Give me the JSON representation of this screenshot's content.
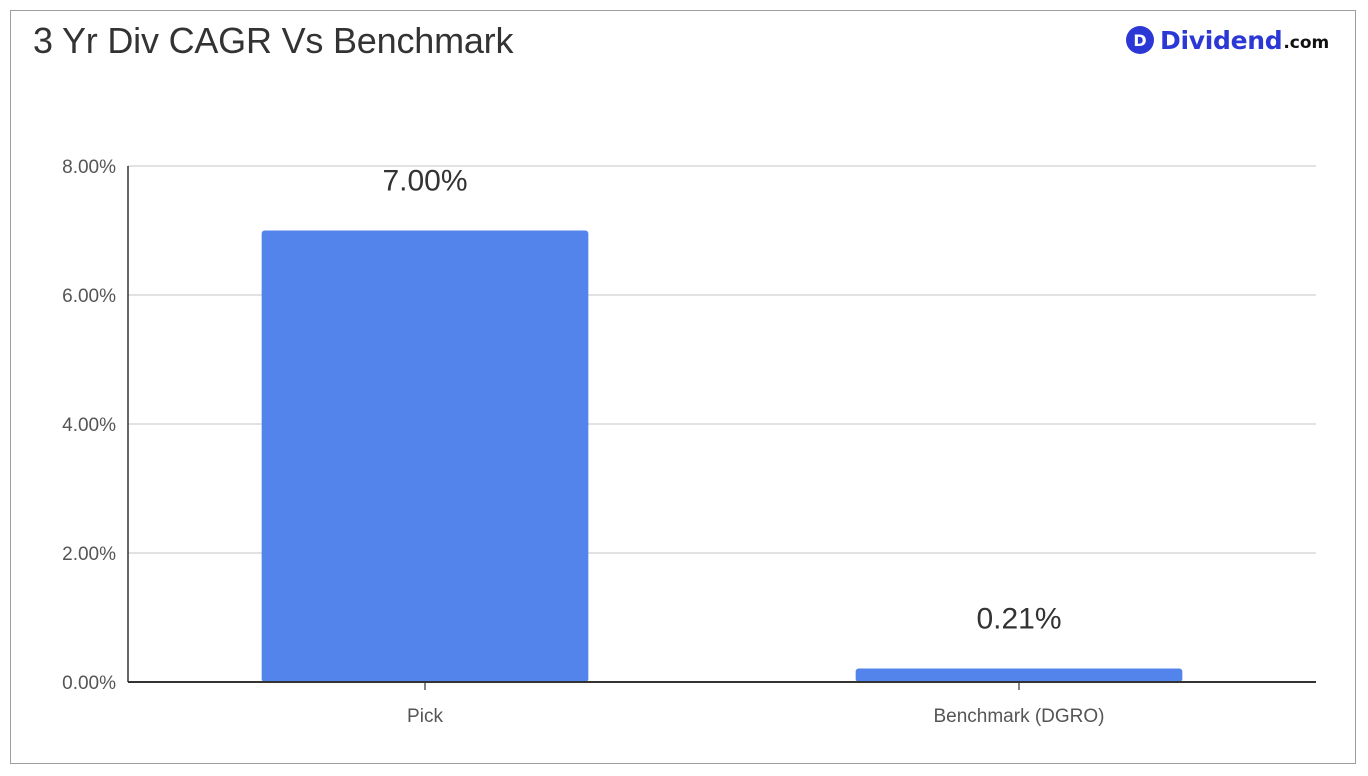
{
  "logo": {
    "badge_letter": "D",
    "word": "Dividend",
    "suffix": ".com",
    "brand_color": "#2b38d6"
  },
  "chart_data": {
    "type": "bar",
    "title": "3 Yr Div CAGR Vs Benchmark",
    "xlabel": "",
    "ylabel": "",
    "categories": [
      "Pick",
      "Benchmark (DGRO)"
    ],
    "values": [
      7.0,
      0.21
    ],
    "data_labels": [
      "7.00%",
      "0.21%"
    ],
    "ylim": [
      0,
      8
    ],
    "yticks": [
      0,
      2,
      4,
      6,
      8
    ],
    "ytick_labels": [
      "0.00%",
      "2.00%",
      "4.00%",
      "6.00%",
      "8.00%"
    ],
    "grid": true,
    "legend": "none",
    "bar_color": "#5384ec",
    "grid_color": "#d9d9d9",
    "axis_color": "#333333"
  }
}
